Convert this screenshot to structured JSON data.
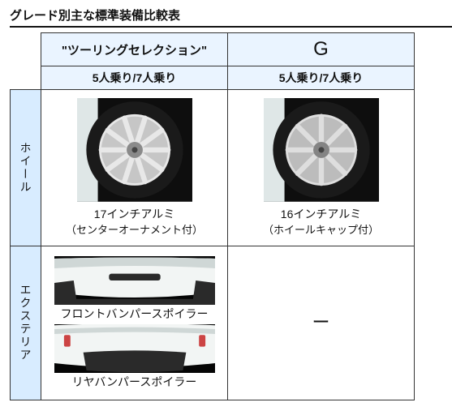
{
  "title": "グレード別主な標準装備比較表",
  "columns": {
    "touring": {
      "grade_label": "\"ツーリングセレクション\"",
      "seat_label": "5人乗り/7人乗り"
    },
    "g": {
      "grade_label": "G",
      "seat_label": "5人乗り/7人乗り"
    }
  },
  "rows": {
    "wheel": {
      "side_label": "ホイール",
      "touring": {
        "caption_line1": "17インチアルミ",
        "caption_line2": "（センターオーナメント付）",
        "wheel_svg": {
          "tire_color": "#1a1a1a",
          "rim_color": "#c6c6c6",
          "rim_highlight": "#e8e8e8",
          "hub_color": "#8a8a8a",
          "background": "#0e0e0e",
          "spoke_count": 10,
          "size": 142
        }
      },
      "g": {
        "caption_line1": "16インチアルミ",
        "caption_line2": "（ホイールキャップ付）",
        "wheel_svg": {
          "tire_color": "#1a1a1a",
          "rim_color": "#bcbcbc",
          "rim_highlight": "#dedede",
          "hub_color": "#848484",
          "background": "#0e0e0e",
          "spoke_count": 8,
          "size": 142
        }
      }
    },
    "exterior": {
      "side_label": "エクステリア",
      "touring": {
        "front_caption": "フロントバンパースポイラー",
        "rear_caption": "リヤバンパースポイラー",
        "bumper_svg": {
          "body_color": "#f2f5f4",
          "body_shadow": "#cfd7d6",
          "accent_dark": "#2a2a2a",
          "background": "#050505",
          "light_color": "#c44",
          "width": 198,
          "height": 60
        }
      },
      "g": {
        "value": "ー"
      }
    }
  }
}
